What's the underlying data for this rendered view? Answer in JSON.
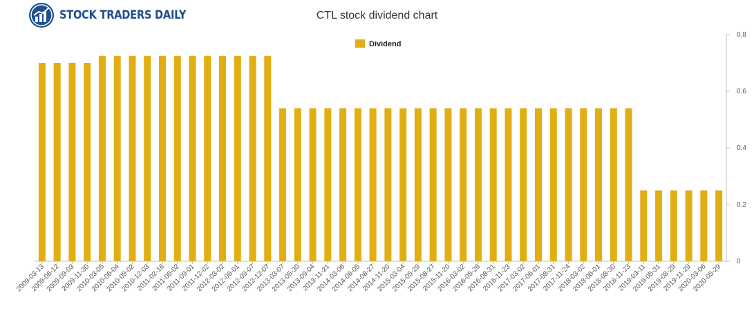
{
  "brand": {
    "name": "STOCK TRADERS DAILY"
  },
  "colors": {
    "bar": "#e1ae13",
    "axis": "#c0c0c0",
    "grid": "#e6e6e6",
    "brand": "#1f4e8c"
  },
  "chart_data": {
    "type": "bar",
    "title": "CTL stock dividend chart",
    "xlabel": "",
    "ylabel": "",
    "ylim": [
      0,
      0.8
    ],
    "yticks": [
      0,
      0.2,
      0.4,
      0.6,
      0.8
    ],
    "ytick_labels": [
      "0",
      "0.2",
      "0.4",
      "0.6",
      "0.8"
    ],
    "legend": "top-center",
    "grid": false,
    "categories": [
      "2009-03-13",
      "2009-06-12",
      "2009-09-03",
      "2009-11-30",
      "2010-03-05",
      "2010-06-04",
      "2010-09-02",
      "2010-12-03",
      "2011-02-16",
      "2011-06-02",
      "2011-09-01",
      "2011-12-02",
      "2012-03-02",
      "2012-06-01",
      "2012-09-07",
      "2012-12-07",
      "2013-03-07",
      "2013-05-30",
      "2013-09-04",
      "2013-11-21",
      "2014-03-06",
      "2014-06-05",
      "2014-08-27",
      "2014-11-20",
      "2015-03-04",
      "2015-05-29",
      "2015-08-27",
      "2015-11-20",
      "2016-03-02",
      "2016-05-26",
      "2016-08-31",
      "2016-11-23",
      "2017-03-02",
      "2017-06-01",
      "2017-08-31",
      "2017-11-24",
      "2018-03-02",
      "2018-06-01",
      "2018-08-30",
      "2018-11-23",
      "2019-03-11",
      "2019-05-31",
      "2019-08-29",
      "2019-11-29",
      "2020-03-06",
      "2020-05-29"
    ],
    "series": [
      {
        "name": "Dividend",
        "values": [
          0.7,
          0.7,
          0.7,
          0.7,
          0.725,
          0.725,
          0.725,
          0.725,
          0.725,
          0.725,
          0.725,
          0.725,
          0.725,
          0.725,
          0.725,
          0.725,
          0.54,
          0.54,
          0.54,
          0.54,
          0.54,
          0.54,
          0.54,
          0.54,
          0.54,
          0.54,
          0.54,
          0.54,
          0.54,
          0.54,
          0.54,
          0.54,
          0.54,
          0.54,
          0.54,
          0.54,
          0.54,
          0.54,
          0.54,
          0.54,
          0.25,
          0.25,
          0.25,
          0.25,
          0.25,
          0.25
        ]
      }
    ]
  }
}
